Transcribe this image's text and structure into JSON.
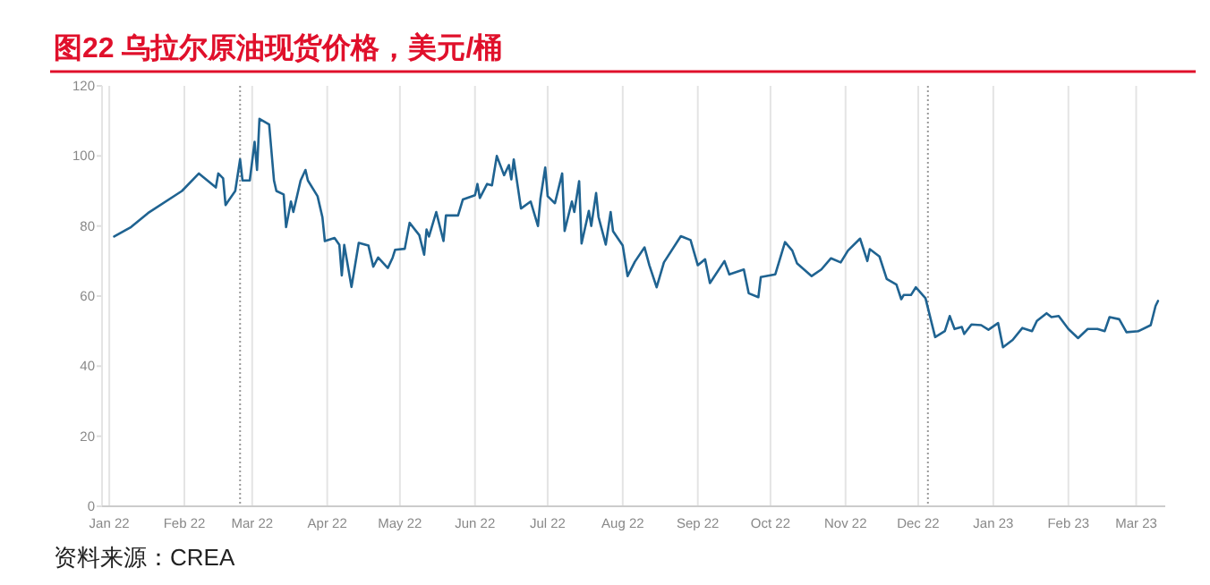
{
  "chart_data": {
    "type": "line",
    "title": "图22  乌拉尔原油现货价格，美元/桶",
    "annotations": [
      "资料来源：CREA"
    ],
    "x": [
      "2022-01-03",
      "2022-01-10",
      "2022-01-17",
      "2022-01-31",
      "2022-02-07",
      "2022-02-14",
      "2022-02-15",
      "2022-02-17",
      "2022-02-18",
      "2022-02-22",
      "2022-02-24",
      "2022-02-25",
      "2022-02-28",
      "2022-03-02",
      "2022-03-03",
      "2022-03-04",
      "2022-03-08",
      "2022-03-10",
      "2022-03-11",
      "2022-03-14",
      "2022-03-15",
      "2022-03-17",
      "2022-03-18",
      "2022-03-21",
      "2022-03-23",
      "2022-03-24",
      "2022-03-28",
      "2022-03-30",
      "2022-03-31",
      "2022-04-04",
      "2022-04-06",
      "2022-04-07",
      "2022-04-08",
      "2022-04-11",
      "2022-04-14",
      "2022-04-18",
      "2022-04-20",
      "2022-04-22",
      "2022-04-26",
      "2022-04-28",
      "2022-04-29",
      "2022-05-03",
      "2022-05-05",
      "2022-05-09",
      "2022-05-11",
      "2022-05-12",
      "2022-05-13",
      "2022-05-16",
      "2022-05-19",
      "2022-05-20",
      "2022-05-25",
      "2022-05-27",
      "2022-06-01",
      "2022-06-02",
      "2022-06-03",
      "2022-06-06",
      "2022-06-08",
      "2022-06-10",
      "2022-06-13",
      "2022-06-15",
      "2022-06-16",
      "2022-06-17",
      "2022-06-20",
      "2022-06-24",
      "2022-06-27",
      "2022-06-28",
      "2022-06-30",
      "2022-07-01",
      "2022-07-04",
      "2022-07-07",
      "2022-07-08",
      "2022-07-11",
      "2022-07-12",
      "2022-07-14",
      "2022-07-15",
      "2022-07-18",
      "2022-07-19",
      "2022-07-21",
      "2022-07-22",
      "2022-07-25",
      "2022-07-27",
      "2022-07-28",
      "2022-08-01",
      "2022-08-03",
      "2022-08-06",
      "2022-08-10",
      "2022-08-12",
      "2022-08-15",
      "2022-08-18",
      "2022-08-25",
      "2022-08-29",
      "2022-09-01",
      "2022-09-04",
      "2022-09-06",
      "2022-09-12",
      "2022-09-14",
      "2022-09-20",
      "2022-09-22",
      "2022-09-26",
      "2022-09-27",
      "2022-10-03",
      "2022-10-07",
      "2022-10-10",
      "2022-10-12",
      "2022-10-18",
      "2022-10-22",
      "2022-10-26",
      "2022-10-30",
      "2022-11-02",
      "2022-11-07",
      "2022-11-10",
      "2022-11-11",
      "2022-11-15",
      "2022-11-18",
      "2022-11-22",
      "2022-11-24",
      "2022-11-25",
      "2022-11-28",
      "2022-11-30",
      "2022-12-04",
      "2022-12-08",
      "2022-12-12",
      "2022-12-14",
      "2022-12-16",
      "2022-12-19",
      "2022-12-20",
      "2022-12-23",
      "2022-12-27",
      "2022-12-30",
      "2023-01-03",
      "2023-01-05",
      "2023-01-09",
      "2023-01-13",
      "2023-01-17",
      "2023-01-19",
      "2023-01-23",
      "2023-01-25",
      "2023-01-28",
      "2023-02-01",
      "2023-02-05",
      "2023-02-09",
      "2023-02-13",
      "2023-02-16",
      "2023-02-18",
      "2023-02-22",
      "2023-02-25",
      "2023-03-02",
      "2023-03-07",
      "2023-03-09",
      "2023-03-10"
    ],
    "series": [
      {
        "color": "#1f6391",
        "values": [
          77,
          79.7,
          83.7,
          90,
          95,
          91,
          95,
          93.6,
          86,
          90,
          99,
          93,
          93,
          104,
          96,
          110.6,
          109,
          93,
          90,
          89,
          79.7,
          87,
          84,
          93,
          96,
          93,
          88.5,
          82.5,
          75.7,
          76.6,
          74.6,
          65.9,
          74.6,
          62.6,
          75.2,
          74.4,
          68.4,
          71,
          68,
          71,
          73.2,
          73.5,
          80.9,
          77.4,
          71.8,
          79,
          77,
          84,
          75.7,
          83,
          83,
          87.6,
          88.8,
          92,
          88,
          92,
          91.6,
          100,
          94.5,
          97.4,
          93.3,
          99,
          85,
          87,
          80,
          87.7,
          96.7,
          88.5,
          86.5,
          95,
          78.6,
          87,
          84,
          92.8,
          75,
          84.3,
          80,
          89.4,
          82.6,
          74.7,
          84,
          78.5,
          74.4,
          65.7,
          69.8,
          73.9,
          68.8,
          62.5,
          69.6,
          77.1,
          76,
          68.8,
          70.5,
          63.7,
          70,
          66.2,
          67.6,
          60.8,
          59.7,
          65.4,
          66.2,
          75.4,
          73,
          69.3,
          65.7,
          67.6,
          70.8,
          69.6,
          73,
          76.4,
          70,
          73.4,
          71.3,
          64.9,
          63.3,
          59.1,
          60.3,
          60.3,
          62.5,
          59.4,
          48.3,
          50,
          54.3,
          50.6,
          51.2,
          49.2,
          51.9,
          51.7,
          50.4,
          52.3,
          45.4,
          47.5,
          50.9,
          50,
          52.9,
          55.1,
          54,
          54.3,
          50.6,
          48,
          50.6,
          50.6,
          50,
          54,
          53.4,
          49.7,
          50,
          51.7,
          57.2,
          58.6
        ]
      }
    ],
    "xlim": [
      "2021-12-29",
      "2023-03-13"
    ],
    "xticks": [
      {
        "value": "2022-01-01",
        "label": "Jan 22"
      },
      {
        "value": "2022-02-01",
        "label": "Feb 22"
      },
      {
        "value": "2022-03-01",
        "label": "Mar 22"
      },
      {
        "value": "2022-04-01",
        "label": "Apr 22"
      },
      {
        "value": "2022-05-01",
        "label": "May 22"
      },
      {
        "value": "2022-06-01",
        "label": "Jun 22"
      },
      {
        "value": "2022-07-01",
        "label": "Jul 22"
      },
      {
        "value": "2022-08-01",
        "label": "Aug 22"
      },
      {
        "value": "2022-09-01",
        "label": "Sep 22"
      },
      {
        "value": "2022-10-01",
        "label": "Oct 22"
      },
      {
        "value": "2022-11-01",
        "label": "Nov 22"
      },
      {
        "value": "2022-12-01",
        "label": "Dec 22"
      },
      {
        "value": "2023-01-01",
        "label": "Jan 23"
      },
      {
        "value": "2023-02-01",
        "label": "Feb 23"
      },
      {
        "value": "2023-03-01",
        "label": "Mar 23"
      }
    ],
    "ylim": [
      0,
      120
    ],
    "yticks": [
      0,
      20,
      40,
      60,
      80,
      100,
      120
    ],
    "grid": "x",
    "marker": "none",
    "line_style": "solid",
    "ref_lines": [
      {
        "axis": "x",
        "value": "2022-02-24",
        "color": "#999999",
        "line_style": "dotted"
      },
      {
        "axis": "x",
        "value": "2022-12-05",
        "color": "#999999",
        "line_style": "dotted"
      }
    ]
  }
}
